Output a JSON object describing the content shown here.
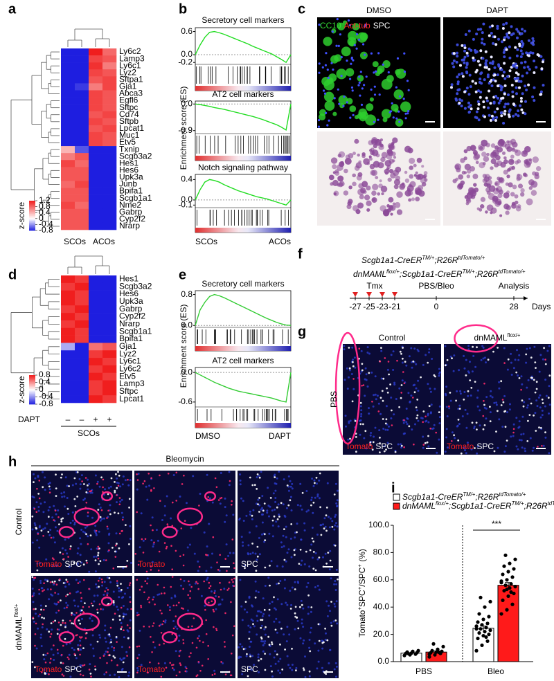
{
  "panel_a": {
    "label": "a",
    "genes": [
      "Ly6c2",
      "Lamp3",
      "Ly6c1",
      "Lyz2",
      "Sftpa1",
      "Gja1",
      "Abca3",
      "Egfl6",
      "Sftpc",
      "Cd74",
      "Sftpb",
      "Lpcat1",
      "Muc1",
      "Etv5",
      "Txnip",
      "Scgb3a2",
      "Hes1",
      "Hes6",
      "Upk3a",
      "Junb",
      "Bpifa1",
      "Scgb1a1",
      "Nme2",
      "Gabrp",
      "Cyp2f2",
      "Nrarp"
    ],
    "z": [
      [
        -0.8,
        -0.8,
        1.2,
        0.8
      ],
      [
        -0.8,
        -0.8,
        1.0,
        0.9
      ],
      [
        -0.8,
        -0.8,
        1.1,
        0.7
      ],
      [
        -0.8,
        -0.8,
        1.0,
        0.9
      ],
      [
        -0.8,
        -0.8,
        0.9,
        1.0
      ],
      [
        -0.8,
        -0.7,
        0.7,
        1.0
      ],
      [
        -0.8,
        -0.8,
        1.0,
        0.9
      ],
      [
        -0.8,
        -0.8,
        1.0,
        0.9
      ],
      [
        -0.8,
        -0.8,
        1.0,
        0.9
      ],
      [
        -0.8,
        -0.8,
        0.9,
        1.0
      ],
      [
        -0.8,
        -0.8,
        1.0,
        0.9
      ],
      [
        -0.8,
        -0.8,
        0.9,
        1.0
      ],
      [
        -0.8,
        -0.8,
        1.0,
        0.9
      ],
      [
        -0.8,
        -0.8,
        1.0,
        0.9
      ],
      [
        0.4,
        -0.6,
        -0.8,
        -0.8
      ],
      [
        0.7,
        0.9,
        -0.8,
        -0.8
      ],
      [
        1.0,
        0.8,
        -0.8,
        -0.8
      ],
      [
        0.9,
        0.9,
        -0.8,
        -0.8
      ],
      [
        0.9,
        0.9,
        -0.8,
        -0.8
      ],
      [
        0.8,
        1.0,
        -0.8,
        -0.8
      ],
      [
        0.9,
        0.9,
        -0.8,
        -0.8
      ],
      [
        0.9,
        0.9,
        -0.8,
        -0.8
      ],
      [
        1.0,
        0.8,
        -0.8,
        -0.8
      ],
      [
        0.9,
        0.9,
        -0.8,
        -0.8
      ],
      [
        0.9,
        0.9,
        -0.8,
        -0.8
      ],
      [
        0.9,
        0.9,
        -0.8,
        -0.8
      ]
    ],
    "colorbar": {
      "title": "z-score",
      "lim": [
        -0.8,
        1.2
      ],
      "ticks": [
        1.2,
        0.8,
        0.4,
        0,
        -0.4,
        -0.8
      ]
    },
    "low_color": "#1e1ee0",
    "high_color": "#f01e1e",
    "groups": [
      "SCOs",
      "ACOs"
    ]
  },
  "panel_b": {
    "label": "b",
    "ylabel": "Enrichment score (ES)",
    "xlabels": [
      "SCOs",
      "ACOs"
    ],
    "color": "#22dd22",
    "plots": [
      {
        "title": "Secretory cell markers",
        "ylim": [
          -0.25,
          0.7
        ],
        "yticks": [
          0.6,
          {
            "value": 0,
            "label": "0.0"
          },
          -0.2
        ],
        "es": [
          0,
          0.25,
          0.45,
          0.58,
          0.6,
          0.57,
          0.53,
          0.48,
          0.43,
          0.38,
          0.33,
          0.28,
          0.22,
          0.17,
          0.12,
          0.07,
          0.02,
          -0.05,
          -0.12,
          -0.2,
          0
        ]
      },
      {
        "title": "AT2 cell markers",
        "ylim": [
          -1.0,
          0.1
        ],
        "yticks": [
          {
            "value": 0,
            "label": "0.0"
          },
          -0.9
        ],
        "es": [
          0,
          -0.02,
          -0.05,
          -0.08,
          -0.12,
          -0.15,
          -0.18,
          -0.22,
          -0.26,
          -0.3,
          -0.34,
          -0.38,
          -0.42,
          -0.47,
          -0.52,
          -0.58,
          -0.64,
          -0.7,
          -0.78,
          -0.88,
          0
        ]
      },
      {
        "title": "Notch signaling pathway",
        "ylim": [
          -0.15,
          0.5
        ],
        "yticks": [
          0.4,
          {
            "value": 0,
            "label": "0.0"
          },
          -0.1
        ],
        "es": [
          0,
          0.2,
          0.35,
          0.4,
          0.38,
          0.35,
          0.3,
          0.26,
          0.22,
          0.18,
          0.15,
          0.12,
          0.09,
          0.06,
          0.04,
          0.02,
          -0.01,
          -0.04,
          -0.07,
          -0.1,
          0
        ]
      }
    ]
  },
  "panel_c": {
    "label": "c",
    "columns": [
      "DMSO",
      "DAPT"
    ],
    "stain": [
      [
        "CC10",
        "#33dd33"
      ],
      [
        "Act-tub",
        "#ff2a2a"
      ],
      [
        "SPC",
        "#ffffff"
      ]
    ]
  },
  "panel_d": {
    "label": "d",
    "genes": [
      "Hes1",
      "Scgb3a2",
      "Hes6",
      "Upk3a",
      "Gabrp",
      "Cyp2f2",
      "Nrarp",
      "Scgb1a1",
      "Bpifa1",
      "Gja1",
      "Lyz2",
      "Ly6c1",
      "Ly6c2",
      "Etv5",
      "Lamp3",
      "Sftpc",
      "Lpcat1"
    ],
    "z": [
      [
        0.8,
        0.7,
        -0.8,
        -0.8
      ],
      [
        0.7,
        0.8,
        -0.8,
        -0.8
      ],
      [
        0.8,
        0.7,
        -0.8,
        -0.8
      ],
      [
        0.8,
        0.7,
        -0.8,
        -0.8
      ],
      [
        0.7,
        0.8,
        -0.8,
        -0.8
      ],
      [
        0.8,
        0.7,
        -0.8,
        -0.8
      ],
      [
        0.7,
        0.8,
        -0.8,
        -0.8
      ],
      [
        0.8,
        0.7,
        -0.8,
        -0.8
      ],
      [
        0.8,
        0.7,
        -0.8,
        -0.8
      ],
      [
        -0.3,
        -0.8,
        0.5,
        0.6
      ],
      [
        -0.8,
        -0.8,
        0.7,
        0.8
      ],
      [
        -0.8,
        -0.8,
        0.8,
        0.7
      ],
      [
        -0.8,
        -0.8,
        0.7,
        0.8
      ],
      [
        -0.8,
        -0.8,
        0.8,
        0.7
      ],
      [
        -0.8,
        -0.8,
        0.7,
        0.8
      ],
      [
        -0.8,
        -0.8,
        0.7,
        0.8
      ],
      [
        -0.8,
        -0.8,
        0.8,
        0.7
      ]
    ],
    "colorbar": {
      "title": "z-score",
      "lim": [
        -0.8,
        0.8
      ],
      "ticks": [
        0.8,
        0.4,
        0,
        -0.4,
        -0.8
      ]
    },
    "low_color": "#1e1ee0",
    "high_color": "#f01e1e",
    "treatment": "DAPT",
    "treatment_marks": [
      "–",
      "–",
      "+",
      "+"
    ],
    "groups": [
      "SCOs"
    ]
  },
  "panel_e": {
    "label": "e",
    "ylabel": "Enrichment score (ES)",
    "xlabels": [
      "DMSO",
      "DAPT"
    ],
    "color": "#33cc33",
    "plots": [
      {
        "title": "Secretory cell markers",
        "ylim": [
          -0.05,
          0.9
        ],
        "yticks": [
          0.8,
          {
            "value": 0,
            "label": "0.0"
          }
        ],
        "es": [
          0,
          0.4,
          0.6,
          0.75,
          0.8,
          0.77,
          0.72,
          0.66,
          0.6,
          0.54,
          0.48,
          0.42,
          0.36,
          0.3,
          0.24,
          0.18,
          0.13,
          0.08,
          0.04,
          0.01,
          0
        ]
      },
      {
        "title": "AT2 cell markers",
        "ylim": [
          -0.7,
          0.1
        ],
        "yticks": [
          {
            "value": 0,
            "label": "0.0"
          },
          -0.6
        ],
        "es": [
          0,
          -0.05,
          -0.1,
          -0.15,
          -0.2,
          -0.24,
          -0.28,
          -0.32,
          -0.35,
          -0.38,
          -0.4,
          -0.42,
          -0.44,
          -0.46,
          -0.48,
          -0.5,
          -0.52,
          -0.55,
          -0.58,
          -0.6,
          0
        ]
      }
    ]
  },
  "panel_f": {
    "label": "f",
    "genotypes": [
      [
        [
          "Scgb1a1-CreER",
          ""
        ],
        [
          "TM/+",
          "sup"
        ],
        [
          ";R26R",
          ""
        ],
        [
          "tdTomato/+",
          "sup"
        ]
      ],
      [
        [
          "dnMAML",
          ""
        ],
        [
          "flox/+",
          "sup"
        ],
        [
          ";Scgb1a1-CreER",
          ""
        ],
        [
          "TM/+",
          "sup"
        ],
        [
          ";R26R",
          ""
        ],
        [
          "tdTomato/+",
          "sup"
        ]
      ]
    ],
    "injection": "Tmx",
    "challenge": "PBS/Bleo",
    "endpoint": "Analysis",
    "days": [
      -27,
      -25,
      -23,
      -21,
      0,
      28
    ],
    "unit": "Days"
  },
  "panel_g": {
    "label": "g",
    "columns": [
      [
        [
          "Control",
          ""
        ]
      ],
      [
        [
          "dnMAML",
          ""
        ],
        [
          "flox/+",
          "sup"
        ]
      ]
    ],
    "row": "PBS",
    "stain": [
      [
        "Tomato",
        "#ff2020"
      ],
      [
        "SPC",
        "#ffffff"
      ]
    ]
  },
  "panel_h": {
    "label": "h",
    "title": "Bleomycin",
    "rows": [
      [
        [
          "Control",
          ""
        ]
      ],
      [
        [
          "dnMAML",
          ""
        ],
        [
          "flox/+",
          "sup"
        ]
      ]
    ],
    "stains": [
      [
        [
          "Tomato",
          "#ff2020"
        ],
        [
          "SPC",
          "#ffffff"
        ]
      ],
      [
        [
          "Tomato",
          "#ff2020"
        ]
      ],
      [
        [
          "SPC",
          "#ffffff"
        ]
      ]
    ]
  },
  "panel_i": {
    "label": "i",
    "type": "bar",
    "ylabel": [
      [
        "Tomato",
        ""
      ],
      [
        "+",
        "sup"
      ],
      [
        "SPC",
        ""
      ],
      [
        "+",
        "sup"
      ],
      [
        "/SPC",
        ""
      ],
      [
        "+",
        "sup"
      ],
      [
        " (%)",
        ""
      ]
    ],
    "categories": [
      "PBS",
      "Bleo"
    ],
    "ylim": [
      0,
      100
    ],
    "yticks": [
      {
        "value": 0,
        "label": "0.0"
      },
      {
        "value": 20,
        "label": "20.0"
      },
      {
        "value": 40,
        "label": "40.0"
      },
      {
        "value": 60,
        "label": "60.0"
      },
      {
        "value": 80,
        "label": "80.0"
      },
      {
        "value": 100,
        "label": "100.0"
      }
    ],
    "series": [
      {
        "name": [
          [
            "Scgb1a1-CreER",
            ""
          ],
          [
            "TM/+",
            "sup"
          ],
          [
            ";R26R",
            ""
          ],
          [
            "tdTomato/+",
            "sup"
          ]
        ],
        "color": "#ffffff",
        "values": [
          6.2,
          24.5
        ],
        "errors": [
          0.4,
          1.6
        ],
        "points": [
          [
            4.5,
            5.0,
            5.5,
            6.0,
            6.2,
            6.5,
            7.0,
            7.5,
            8.0,
            5.8
          ],
          [
            8,
            12,
            15,
            17,
            19,
            20,
            21,
            22,
            23,
            24,
            25,
            26,
            27,
            28,
            29,
            31,
            33,
            35,
            40,
            44,
            47,
            18,
            24
          ]
        ]
      },
      {
        "name": [
          [
            "dnMAML",
            ""
          ],
          [
            "flox/+",
            "sup"
          ],
          [
            ";Scgb1a1-CreER",
            ""
          ],
          [
            "TM/+",
            "sup"
          ],
          [
            ";R26R",
            ""
          ],
          [
            "tdTomato/+",
            "sup"
          ]
        ],
        "color": "#ff1a1a",
        "values": [
          7.0,
          56.0
        ],
        "errors": [
          0.8,
          2.0
        ],
        "points": [
          [
            3.5,
            5.0,
            6.0,
            6.5,
            7.0,
            7.5,
            8.0,
            9.0,
            11.0,
            13.0,
            6.8,
            5.5
          ],
          [
            35,
            38,
            42,
            45,
            48,
            50,
            52,
            54,
            55,
            56,
            57,
            58,
            60,
            62,
            64,
            66,
            68,
            70,
            72,
            75,
            78,
            51,
            59,
            53
          ]
        ]
      }
    ],
    "significance": "***"
  }
}
